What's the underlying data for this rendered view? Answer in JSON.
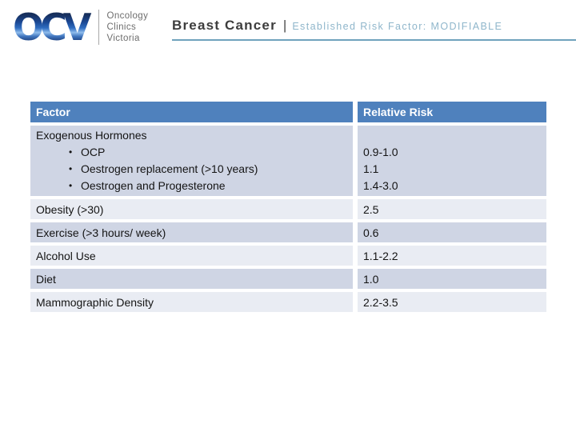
{
  "logo": {
    "acronym": "OCV",
    "line1": "Oncology",
    "line2": "Clinics",
    "line3": "Victoria"
  },
  "header": {
    "title": "Breast Cancer",
    "separator": "|",
    "subtitle": "Established Risk Factor: MODIFIABLE"
  },
  "table": {
    "header": {
      "factor": "Factor",
      "risk": "Relative Risk"
    },
    "rows": [
      {
        "factor": "Exogenous Hormones",
        "bullets": [
          "OCP",
          "Oestrogen replacement (>10 years)",
          "Oestrogen and Progesterone"
        ],
        "risks": [
          "0.9-1.0",
          "1.1",
          "1.4-3.0"
        ]
      },
      {
        "factor": "Obesity (>30)",
        "risk": "2.5"
      },
      {
        "factor": "Exercise (>3 hours/ week)",
        "risk": "0.6"
      },
      {
        "factor": "Alcohol Use",
        "risk": "1.1-2.2"
      },
      {
        "factor": "Diet",
        "risk": "1.0"
      },
      {
        "factor": "Mammographic Density",
        "risk": "2.2-3.5"
      }
    ]
  },
  "colors": {
    "table_header_bg": "#4F81BD",
    "table_header_text": "#FFFFFF",
    "row_band_dark": "#CFD5E4",
    "row_band_light": "#E9ECF3",
    "title_text": "#3D3D3D",
    "subtitle_text": "#8FB6CB",
    "title_underline": "#6FA3BC",
    "logo_blue": "#1D4A97",
    "logo_text_gray": "#6D6D6D"
  }
}
